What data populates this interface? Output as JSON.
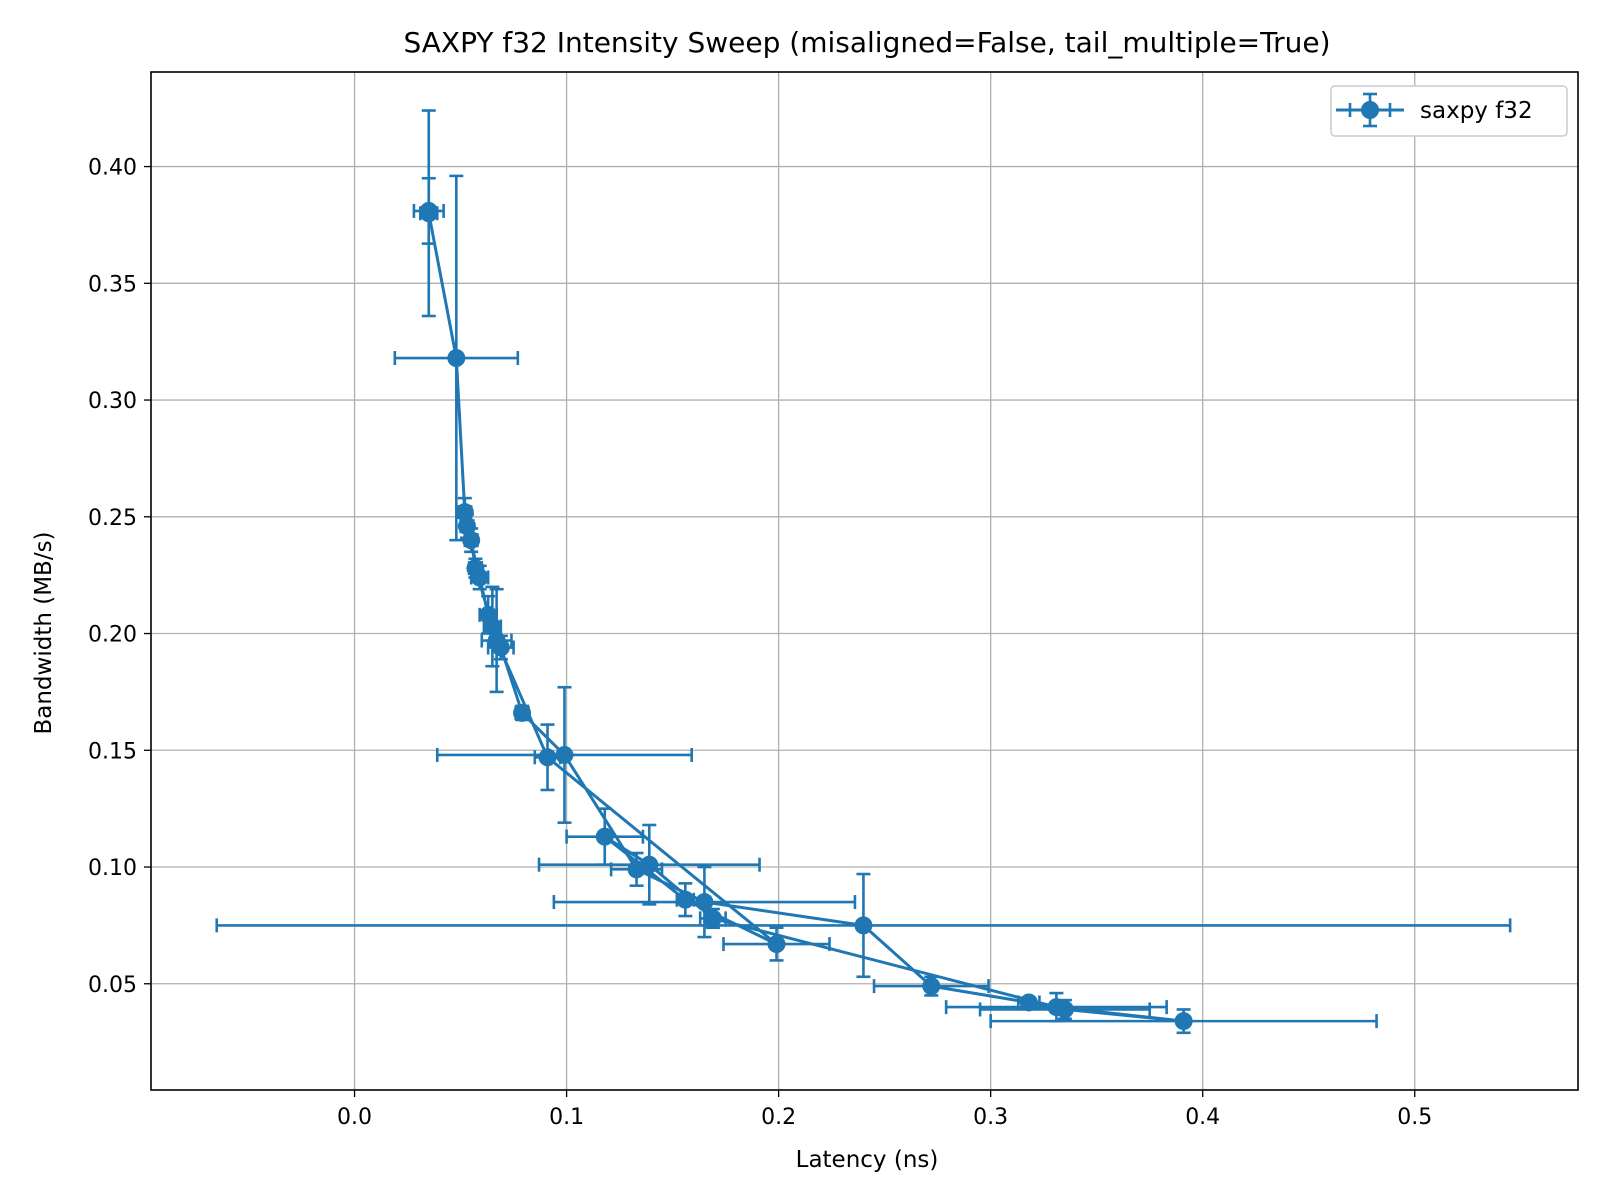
{
  "chart_data": {
    "type": "scatter",
    "title": "SAXPY f32 Intensity Sweep (misaligned=False, tail_multiple=True)",
    "xlabel": "Latency (ns)",
    "ylabel": "Bandwidth (MB/s)",
    "xlim": [
      -0.096,
      0.577
    ],
    "ylim": [
      0.0045,
      0.4405
    ],
    "xticks": [
      "0.0",
      "0.1",
      "0.2",
      "0.3",
      "0.4",
      "0.5"
    ],
    "yticks": [
      "0.05",
      "0.10",
      "0.15",
      "0.20",
      "0.25",
      "0.30",
      "0.35",
      "0.40"
    ],
    "grid": true,
    "legend_position": "top-right",
    "colors": {
      "series": "#1f77b4",
      "grid": "#b0b0b0"
    },
    "series": [
      {
        "name": "saxpy f32",
        "points": [
          {
            "x": 0.035,
            "y": 0.381,
            "xerr": 0.007,
            "yerr": 0.014
          },
          {
            "x": 0.035,
            "y": 0.38,
            "xerr": 0.004,
            "yerr": 0.044
          },
          {
            "x": 0.048,
            "y": 0.318,
            "xerr": 0.029,
            "yerr": 0.078
          },
          {
            "x": 0.052,
            "y": 0.252,
            "xerr": 0.003,
            "yerr": 0.006
          },
          {
            "x": 0.053,
            "y": 0.246,
            "xerr": 0.003,
            "yerr": 0.005
          },
          {
            "x": 0.055,
            "y": 0.24,
            "xerr": 0.003,
            "yerr": 0.005
          },
          {
            "x": 0.057,
            "y": 0.228,
            "xerr": 0.003,
            "yerr": 0.004
          },
          {
            "x": 0.059,
            "y": 0.224,
            "xerr": 0.004,
            "yerr": 0.005
          },
          {
            "x": 0.063,
            "y": 0.208,
            "xerr": 0.004,
            "yerr": 0.008
          },
          {
            "x": 0.065,
            "y": 0.203,
            "xerr": 0.004,
            "yerr": 0.017
          },
          {
            "x": 0.067,
            "y": 0.197,
            "xerr": 0.007,
            "yerr": 0.022
          },
          {
            "x": 0.069,
            "y": 0.194,
            "xerr": 0.006,
            "yerr": 0.005
          },
          {
            "x": 0.079,
            "y": 0.166,
            "xerr": 0.003,
            "yerr": 0.003
          },
          {
            "x": 0.091,
            "y": 0.147,
            "xerr": 0.006,
            "yerr": 0.014
          },
          {
            "x": 0.099,
            "y": 0.148,
            "xerr": 0.06,
            "yerr": 0.029
          },
          {
            "x": 0.118,
            "y": 0.113,
            "xerr": 0.018,
            "yerr": 0.012
          },
          {
            "x": 0.133,
            "y": 0.099,
            "xerr": 0.012,
            "yerr": 0.007
          },
          {
            "x": 0.139,
            "y": 0.101,
            "xerr": 0.052,
            "yerr": 0.017
          },
          {
            "x": 0.156,
            "y": 0.086,
            "xerr": 0.004,
            "yerr": 0.007
          },
          {
            "x": 0.165,
            "y": 0.085,
            "xerr": 0.071,
            "yerr": 0.015
          },
          {
            "x": 0.169,
            "y": 0.078,
            "xerr": 0.006,
            "yerr": 0.004
          },
          {
            "x": 0.199,
            "y": 0.067,
            "xerr": 0.025,
            "yerr": 0.007
          },
          {
            "x": 0.24,
            "y": 0.075,
            "xerr": 0.305,
            "yerr": 0.022
          },
          {
            "x": 0.272,
            "y": 0.049,
            "xerr": 0.027,
            "yerr": 0.004
          },
          {
            "x": 0.318,
            "y": 0.042,
            "xerr": 0.005,
            "yerr": 0.002
          },
          {
            "x": 0.331,
            "y": 0.04,
            "xerr": 0.052,
            "yerr": 0.006
          },
          {
            "x": 0.335,
            "y": 0.039,
            "xerr": 0.04,
            "yerr": 0.004
          },
          {
            "x": 0.391,
            "y": 0.034,
            "xerr": 0.091,
            "yerr": 0.005
          }
        ],
        "line_order": [
          0,
          1,
          2,
          3,
          5,
          6,
          9,
          11,
          12,
          14,
          16,
          19,
          22,
          23,
          24,
          26,
          27,
          25,
          20,
          17,
          15,
          18,
          21,
          13,
          10,
          8,
          7,
          4
        ]
      }
    ]
  }
}
